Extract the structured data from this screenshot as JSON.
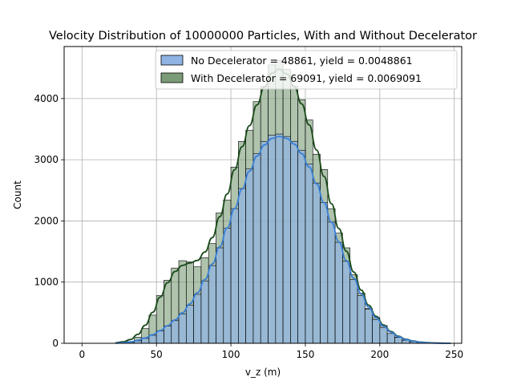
{
  "chart_data": {
    "type": "histogram",
    "title": "Velocity Distribution of 10000000 Particles, With and Without Decelerator",
    "xlabel": "v_z (m)",
    "ylabel": "Count",
    "xlim": [
      -12,
      255
    ],
    "ylim": [
      0,
      4850
    ],
    "x_ticks": [
      0,
      50,
      100,
      150,
      200,
      250
    ],
    "y_ticks": [
      0,
      1000,
      2000,
      3000,
      4000
    ],
    "grid": true,
    "legend_position": "top-right",
    "bin_start": 20,
    "bin_width": 5,
    "series": [
      {
        "name": "No Decelerator = 48861, yield  = 0.0048861",
        "color": "#8fb3e3",
        "line_color": "#3a7fd5",
        "values": [
          0,
          0,
          15,
          40,
          80,
          130,
          200,
          280,
          370,
          480,
          620,
          800,
          1020,
          1270,
          1560,
          1880,
          2200,
          2530,
          2850,
          3100,
          3300,
          3400,
          3420,
          3380,
          3300,
          3150,
          2930,
          2620,
          2300,
          1980,
          1650,
          1340,
          1040,
          780,
          560,
          390,
          260,
          160,
          95,
          50,
          25,
          10,
          5,
          2,
          1,
          0
        ]
      },
      {
        "name": "With Decelerator = 69091, yield  = 0.0069091",
        "color": "#7a9b76",
        "line_color": "#1a4a1a",
        "values": [
          2,
          10,
          30,
          100,
          240,
          460,
          780,
          1030,
          1230,
          1350,
          1330,
          1250,
          1400,
          1630,
          2130,
          2340,
          2880,
          3300,
          3480,
          3950,
          4200,
          4550,
          4620,
          4480,
          4200,
          3980,
          3650,
          3090,
          2840,
          2200,
          1800,
          1560,
          1120,
          820,
          570,
          420,
          290,
          160,
          100,
          55,
          30,
          15,
          8,
          4,
          2,
          1
        ]
      }
    ]
  }
}
